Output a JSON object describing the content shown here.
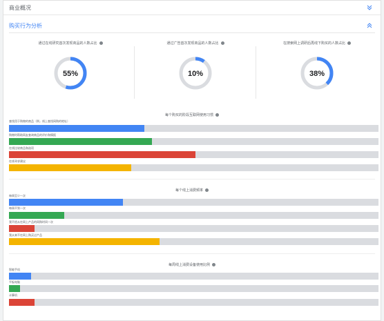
{
  "sections": {
    "overview": {
      "label": "商业概况"
    },
    "shopping": {
      "label": "购买行为分析"
    }
  },
  "kpis": [
    {
      "title": "通过在线研究首次发现商品的人数占比",
      "value": 0.55,
      "value_label": "55%"
    },
    {
      "title": "通过广告首次发现商品的人数占比",
      "value": 0.1,
      "value_label": "10%"
    },
    {
      "title": "在搜索网上调研后再线下购买的人数占比",
      "value": 0.38,
      "value_label": "38%"
    }
  ],
  "groups": [
    {
      "title": "每个购买的阶段互联网使用习惯",
      "items": [
        {
          "label": "查找用于购物的商品（例，线上查找网购的地址）",
          "value": 0.366,
          "color": "#4285f4"
        },
        {
          "label": "购物时帮助网友查询商品的评价和情报",
          "value": 0.387,
          "color": "#34a853"
        },
        {
          "label": "在线比较商品和选项",
          "value": 0.505,
          "color": "#db4437"
        },
        {
          "label": "在线寻求建议",
          "value": 0.33,
          "color": "#f4b400"
        }
      ]
    },
    {
      "title": "每个线上消费频率",
      "items": [
        {
          "label": "每周至少一次",
          "value": 0.308,
          "color": "#4285f4"
        },
        {
          "label": "每周不到一次",
          "value": 0.149,
          "color": "#34a853"
        },
        {
          "label": "我不经从在网上产品的网购时间一次",
          "value": 0.07,
          "color": "#db4437"
        },
        {
          "label": "我从来不在网上购买过产品",
          "value": 0.408,
          "color": "#f4b400"
        }
      ]
    },
    {
      "title": "每周线上消费设备使用比例",
      "items": [
        {
          "label": "智能手机",
          "value": 0.06,
          "color": "#4285f4"
        },
        {
          "label": "平板电脑",
          "value": 0.03,
          "color": "#34a853"
        },
        {
          "label": "计算机",
          "value": 0.07,
          "color": "#db4437"
        }
      ]
    }
  ],
  "colors": {
    "accent": "#4285f4",
    "track": "#dadce0"
  }
}
